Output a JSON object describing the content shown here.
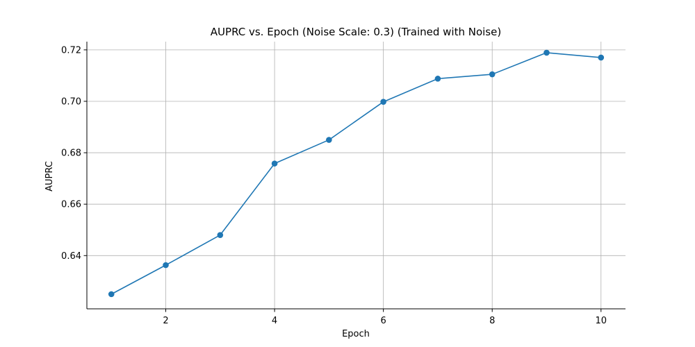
{
  "chart_data": {
    "type": "line",
    "title": "AUPRC vs. Epoch (Noise Scale: 0.3) (Trained with Noise)",
    "xlabel": "Epoch",
    "ylabel": "AUPRC",
    "x": [
      1,
      2,
      3,
      4,
      5,
      6,
      7,
      8,
      9,
      10
    ],
    "series": [
      {
        "values": [
          0.625,
          0.6363,
          0.648,
          0.6758,
          0.685,
          0.6998,
          0.7088,
          0.7105,
          0.7189,
          0.717
        ],
        "color": "#1f77b4",
        "marker": "circle"
      }
    ],
    "xlim": [
      0.55,
      10.45
    ],
    "ylim": [
      0.6193,
      0.7232
    ],
    "xticks": [
      2,
      4,
      6,
      8,
      10
    ],
    "xtick_labels": [
      "2",
      "4",
      "6",
      "8",
      "10"
    ],
    "yticks": [
      0.64,
      0.66,
      0.68,
      0.7,
      0.72
    ],
    "ytick_labels": [
      "0.64",
      "0.66",
      "0.68",
      "0.70",
      "0.72"
    ],
    "grid": true,
    "grid_color": "#b0b0b0",
    "spines": "left-bottom"
  }
}
